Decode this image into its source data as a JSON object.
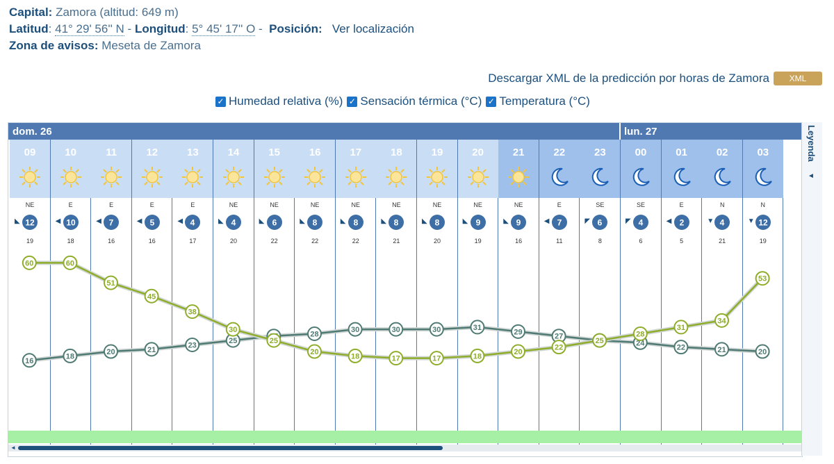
{
  "location": {
    "capital_label": "Capital:",
    "capital_value": "Zamora (altitud: 649 m)",
    "lat_label": "Latitud",
    "lat_value": "41° 29' 56'' N",
    "lon_label": "Longitud",
    "lon_value": "5° 45' 17'' O",
    "pos_label": "Posición:",
    "pos_link": "Ver localización",
    "zona_label": "Zona de avisos:",
    "zona_value": "Meseta de Zamora"
  },
  "download": {
    "link": "Descargar XML de la predicción por horas de Zamora",
    "badge": "XML"
  },
  "toggles": [
    {
      "label": "Humedad relativa (%)",
      "checked": true
    },
    {
      "label": "Sensación térmica (°C)",
      "checked": true
    },
    {
      "label": "Temperatura (°C)",
      "checked": true
    }
  ],
  "days": [
    {
      "label": "dom. 26"
    },
    {
      "label": "lun. 27"
    }
  ],
  "legend": {
    "label": "Leyenda",
    "arrow": "◄"
  },
  "hours": [
    {
      "h": "09",
      "sky": "sun",
      "dir": "NE",
      "speed": "12",
      "gust": "19"
    },
    {
      "h": "10",
      "sky": "sun",
      "dir": "E",
      "speed": "10",
      "gust": "18"
    },
    {
      "h": "11",
      "sky": "sun",
      "dir": "E",
      "speed": "7",
      "gust": "16"
    },
    {
      "h": "12",
      "sky": "sun",
      "dir": "E",
      "speed": "5",
      "gust": "16"
    },
    {
      "h": "13",
      "sky": "sun",
      "dir": "E",
      "speed": "4",
      "gust": "17"
    },
    {
      "h": "14",
      "sky": "sun",
      "dir": "NE",
      "speed": "4",
      "gust": "20"
    },
    {
      "h": "15",
      "sky": "sun",
      "dir": "NE",
      "speed": "6",
      "gust": "22"
    },
    {
      "h": "16",
      "sky": "sun",
      "dir": "NE",
      "speed": "8",
      "gust": "22"
    },
    {
      "h": "17",
      "sky": "sun",
      "dir": "NE",
      "speed": "8",
      "gust": "22"
    },
    {
      "h": "18",
      "sky": "sun",
      "dir": "NE",
      "speed": "8",
      "gust": "21"
    },
    {
      "h": "19",
      "sky": "sun",
      "dir": "NE",
      "speed": "8",
      "gust": "20"
    },
    {
      "h": "20",
      "sky": "sun",
      "dir": "NE",
      "speed": "9",
      "gust": "19"
    },
    {
      "h": "21",
      "sky": "sun",
      "dir": "NE",
      "speed": "9",
      "gust": "16",
      "night": true
    },
    {
      "h": "22",
      "sky": "moon",
      "dir": "E",
      "speed": "7",
      "gust": "11",
      "night": true
    },
    {
      "h": "23",
      "sky": "moon",
      "dir": "SE",
      "speed": "6",
      "gust": "8",
      "night": true
    },
    {
      "h": "00",
      "sky": "moon",
      "dir": "SE",
      "speed": "4",
      "gust": "6",
      "night": true
    },
    {
      "h": "01",
      "sky": "moon",
      "dir": "E",
      "speed": "2",
      "gust": "5",
      "night": true
    },
    {
      "h": "02",
      "sky": "moon",
      "dir": "N",
      "speed": "4",
      "gust": "21",
      "night": true
    },
    {
      "h": "03",
      "sky": "moon",
      "dir": "N",
      "speed": "12",
      "gust": "19",
      "night": true
    }
  ],
  "chart_data": {
    "type": "line",
    "x": [
      "09",
      "10",
      "11",
      "12",
      "13",
      "14",
      "15",
      "16",
      "17",
      "18",
      "19",
      "20",
      "21",
      "22",
      "23",
      "00",
      "01",
      "02",
      "03"
    ],
    "series": [
      {
        "name": "Temperatura (°C)",
        "color": "#4e7a73",
        "values": [
          16,
          18,
          20,
          21,
          23,
          25,
          27,
          28,
          30,
          30,
          30,
          31,
          29,
          27,
          25,
          24,
          22,
          21,
          20
        ]
      },
      {
        "name": "Humedad relativa (%)",
        "color": "#8fad2a",
        "values": [
          60,
          60,
          51,
          45,
          38,
          30,
          25,
          20,
          18,
          17,
          17,
          18,
          20,
          22,
          25,
          28,
          31,
          34,
          53
        ]
      }
    ]
  },
  "colors": {
    "header_blue": "#4f79b0",
    "temp_line": "#4e7a73",
    "hum_line": "#8fad2a",
    "sun": "#f2c53b",
    "moon": "#1a5fb4"
  }
}
